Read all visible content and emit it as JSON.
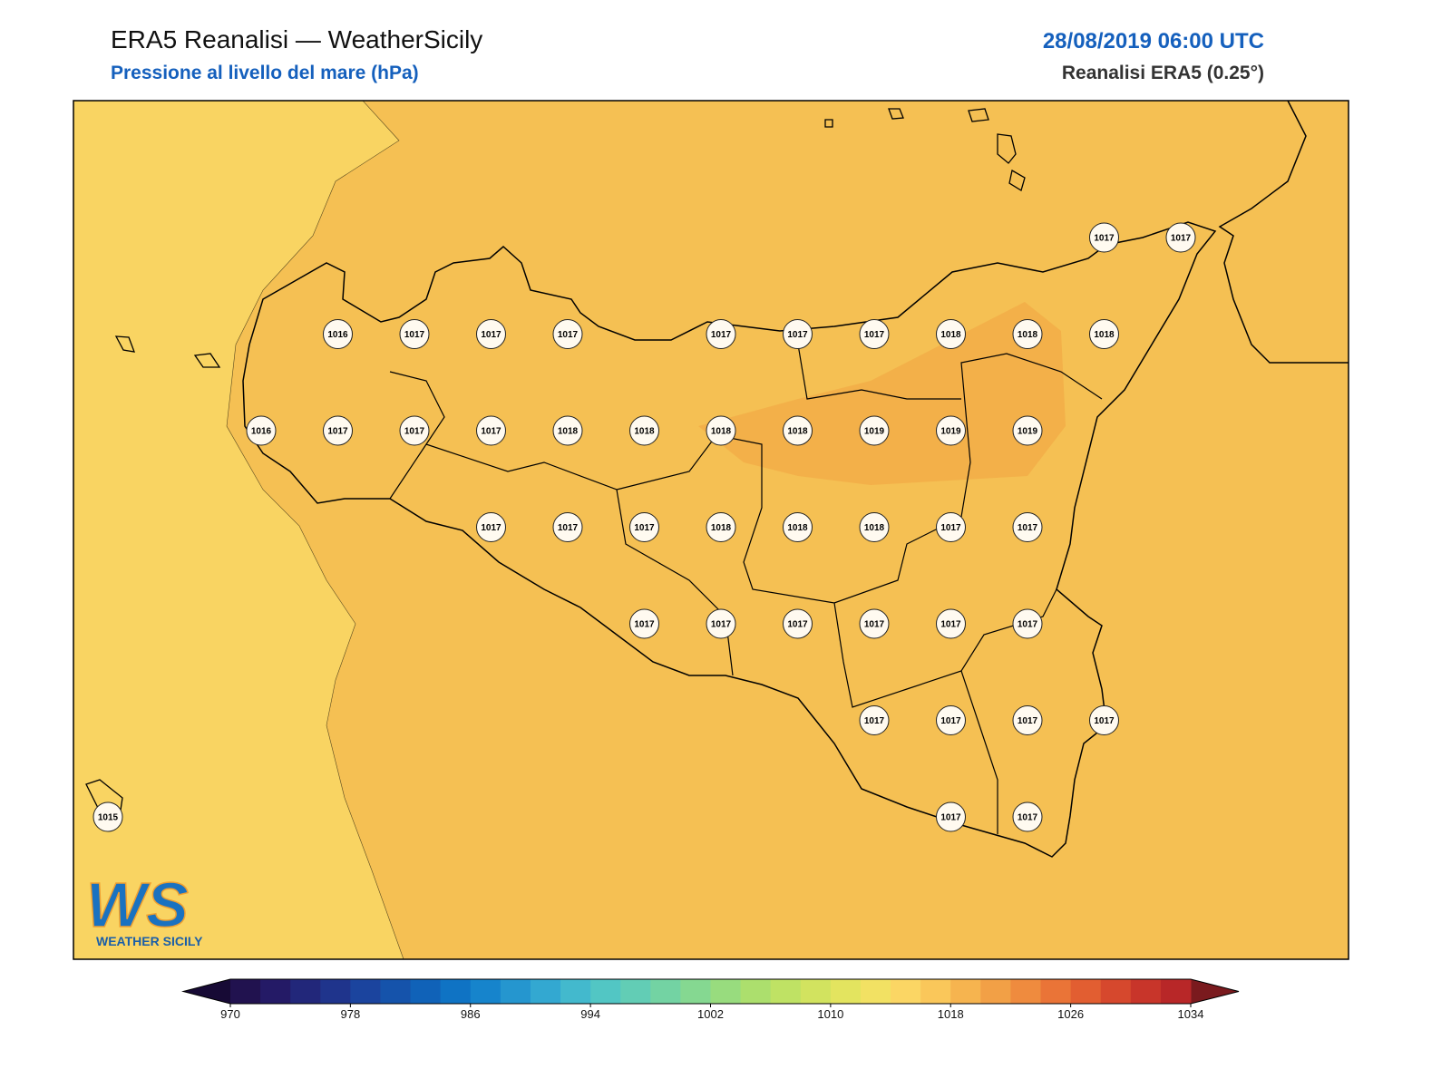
{
  "header": {
    "title": "ERA5 Reanalisi — WeatherSicily",
    "subtitle": "Pressione al livello del mare (hPa)",
    "date": "28/08/2019 06:00 UTC",
    "source": "Reanalisi ERA5 (0.25°)"
  },
  "stations": [
    1017,
    1017,
    1016,
    1017,
    1017,
    1017,
    1017,
    1017,
    1017,
    1018,
    1018,
    1018,
    1016,
    1017,
    1017,
    1017,
    1018,
    1018,
    1018,
    1018,
    1019,
    1019,
    1019,
    1017,
    1017,
    1017,
    1018,
    1018,
    1018,
    1017,
    1017,
    1017,
    1017,
    1017,
    1017,
    1017,
    1017,
    1017,
    1017,
    1017,
    1017,
    1015,
    1017,
    1017
  ],
  "colorbar": {
    "range": [
      970,
      1034
    ],
    "ticks": [
      970,
      978,
      986,
      994,
      1002,
      1010,
      1018,
      1026,
      1034
    ],
    "colors": [
      "#21124f",
      "#241a66",
      "#22277a",
      "#1f348c",
      "#1b449e",
      "#1553ab",
      "#1062b8",
      "#0f73c4",
      "#1684cc",
      "#2596cf",
      "#33a8d1",
      "#43b9cd",
      "#52c6c4",
      "#62cdb5",
      "#73d3a3",
      "#85d891",
      "#98dc7e",
      "#acdf6d",
      "#bfe264",
      "#d2e35f",
      "#e3e45f",
      "#f2e163",
      "#fbd664",
      "#fac75a",
      "#f6b44f",
      "#f2a046",
      "#ef8b3e",
      "#ea7437",
      "#e25e31",
      "#d6482d",
      "#c8352a",
      "#b82728"
    ],
    "under_color": "#170a35",
    "over_color": "#7a1a1e"
  },
  "logo": {
    "mark": "WS",
    "text": "WEATHER SICILY"
  }
}
